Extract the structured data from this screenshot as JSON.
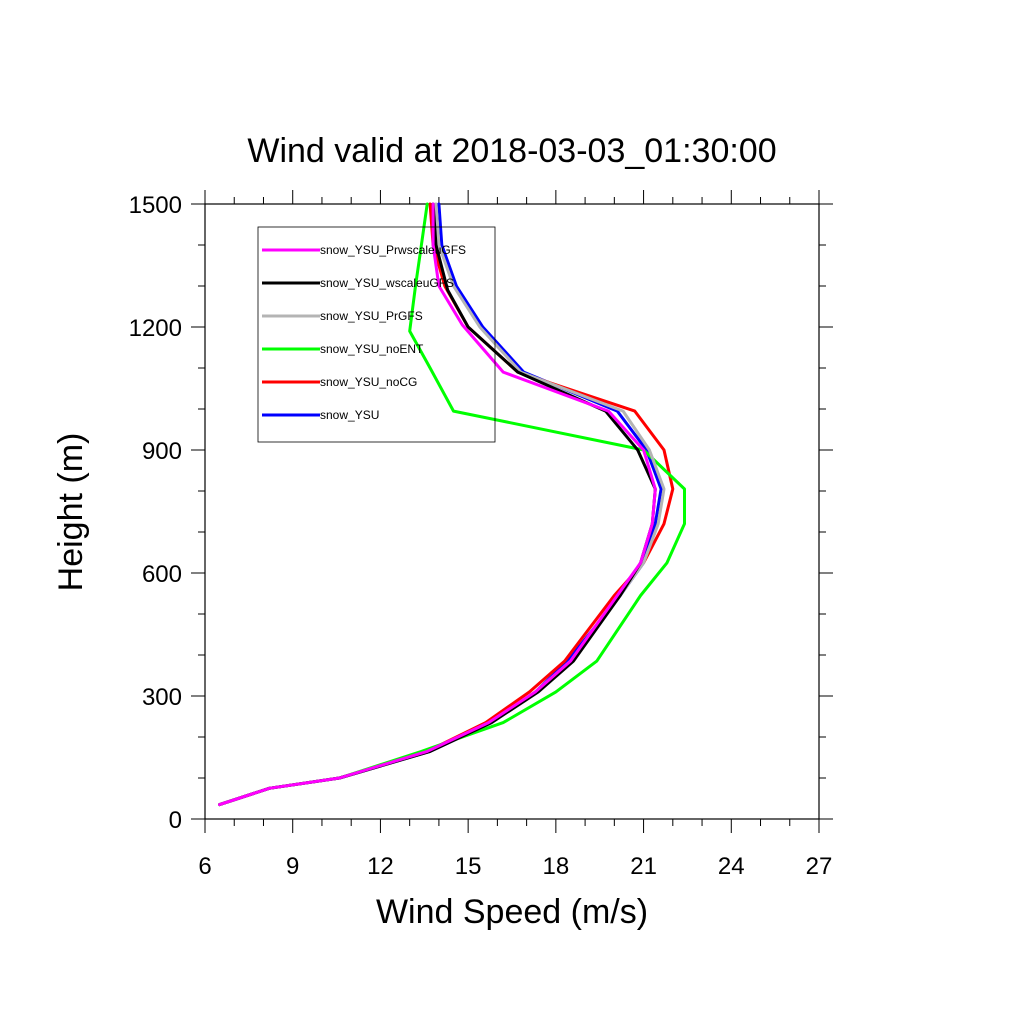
{
  "chart_data": {
    "type": "line",
    "title": "Wind valid at 2018-03-03_01:30:00",
    "xlabel": "Wind Speed (m/s)",
    "ylabel": "Height (m)",
    "xlim": [
      6,
      27
    ],
    "ylim": [
      0,
      1500
    ],
    "xticks": [
      "6",
      "9",
      "12",
      "15",
      "18",
      "21",
      "24",
      "27"
    ],
    "yticks": [
      "0",
      "300",
      "600",
      "900",
      "1200",
      "1500"
    ],
    "legend_position": "top-left",
    "grid": false,
    "series": [
      {
        "name": "snow_YSU_PrwscaleuGFS",
        "color": "#ff00ff",
        "points": [
          [
            6.5,
            35
          ],
          [
            8.2,
            75
          ],
          [
            10.6,
            100
          ],
          [
            13.6,
            165
          ],
          [
            15.7,
            235
          ],
          [
            17.3,
            310
          ],
          [
            18.5,
            385
          ],
          [
            20.1,
            545
          ],
          [
            20.9,
            625
          ],
          [
            21.3,
            720
          ],
          [
            21.4,
            805
          ],
          [
            21.0,
            900
          ],
          [
            19.8,
            995
          ],
          [
            16.2,
            1090
          ],
          [
            14.8,
            1205
          ],
          [
            14.0,
            1300
          ],
          [
            13.8,
            1400
          ],
          [
            13.8,
            1500
          ]
        ]
      },
      {
        "name": "snow_YSU_wscaleuGFS",
        "color": "#000000",
        "points": [
          [
            6.5,
            35
          ],
          [
            8.2,
            75
          ],
          [
            10.6,
            100
          ],
          [
            13.7,
            165
          ],
          [
            15.8,
            235
          ],
          [
            17.4,
            310
          ],
          [
            18.6,
            385
          ],
          [
            20.2,
            545
          ],
          [
            20.9,
            625
          ],
          [
            21.3,
            720
          ],
          [
            21.4,
            805
          ],
          [
            20.8,
            900
          ],
          [
            19.7,
            995
          ],
          [
            16.7,
            1090
          ],
          [
            15.0,
            1200
          ],
          [
            14.3,
            1290
          ],
          [
            13.9,
            1400
          ],
          [
            13.8,
            1500
          ]
        ]
      },
      {
        "name": "snow_YSU_PrGFS",
        "color": "#b4b4b4",
        "points": [
          [
            6.5,
            35
          ],
          [
            8.2,
            75
          ],
          [
            10.6,
            100
          ],
          [
            13.7,
            165
          ],
          [
            15.8,
            235
          ],
          [
            17.3,
            310
          ],
          [
            18.5,
            385
          ],
          [
            20.2,
            545
          ],
          [
            21.0,
            625
          ],
          [
            21.5,
            720
          ],
          [
            21.7,
            805
          ],
          [
            21.2,
            900
          ],
          [
            20.3,
            995
          ],
          [
            16.8,
            1090
          ],
          [
            15.4,
            1200
          ],
          [
            14.5,
            1300
          ],
          [
            14.0,
            1400
          ],
          [
            13.9,
            1500
          ]
        ]
      },
      {
        "name": "snow_YSU_noENT",
        "color": "#00ff00",
        "points": [
          [
            6.5,
            35
          ],
          [
            8.2,
            75
          ],
          [
            10.6,
            100
          ],
          [
            13.4,
            165
          ],
          [
            16.2,
            235
          ],
          [
            18.0,
            310
          ],
          [
            19.4,
            385
          ],
          [
            20.9,
            545
          ],
          [
            21.8,
            625
          ],
          [
            22.4,
            720
          ],
          [
            22.4,
            805
          ],
          [
            21.0,
            900
          ],
          [
            14.5,
            995
          ],
          [
            13.7,
            1100
          ],
          [
            13.0,
            1190
          ],
          [
            13.2,
            1300
          ],
          [
            13.4,
            1400
          ],
          [
            13.6,
            1500
          ]
        ]
      },
      {
        "name": "snow_YSU_noCG",
        "color": "#ff0000",
        "points": [
          [
            6.5,
            35
          ],
          [
            8.2,
            75
          ],
          [
            10.6,
            100
          ],
          [
            13.6,
            165
          ],
          [
            15.6,
            235
          ],
          [
            17.1,
            310
          ],
          [
            18.3,
            385
          ],
          [
            20.0,
            545
          ],
          [
            21.0,
            625
          ],
          [
            21.7,
            720
          ],
          [
            22.0,
            805
          ],
          [
            21.7,
            900
          ],
          [
            20.7,
            995
          ],
          [
            16.7,
            1090
          ],
          [
            15.0,
            1200
          ],
          [
            14.2,
            1300
          ],
          [
            13.8,
            1400
          ],
          [
            13.7,
            1500
          ]
        ]
      },
      {
        "name": "snow_YSU",
        "color": "#0000ff",
        "points": [
          [
            6.5,
            35
          ],
          [
            8.2,
            75
          ],
          [
            10.6,
            100
          ],
          [
            13.7,
            165
          ],
          [
            15.8,
            235
          ],
          [
            17.3,
            310
          ],
          [
            18.4,
            385
          ],
          [
            20.2,
            545
          ],
          [
            21.0,
            625
          ],
          [
            21.4,
            720
          ],
          [
            21.6,
            805
          ],
          [
            21.1,
            900
          ],
          [
            20.1,
            995
          ],
          [
            16.9,
            1090
          ],
          [
            15.5,
            1200
          ],
          [
            14.6,
            1300
          ],
          [
            14.1,
            1400
          ],
          [
            14.0,
            1500
          ]
        ]
      }
    ]
  }
}
